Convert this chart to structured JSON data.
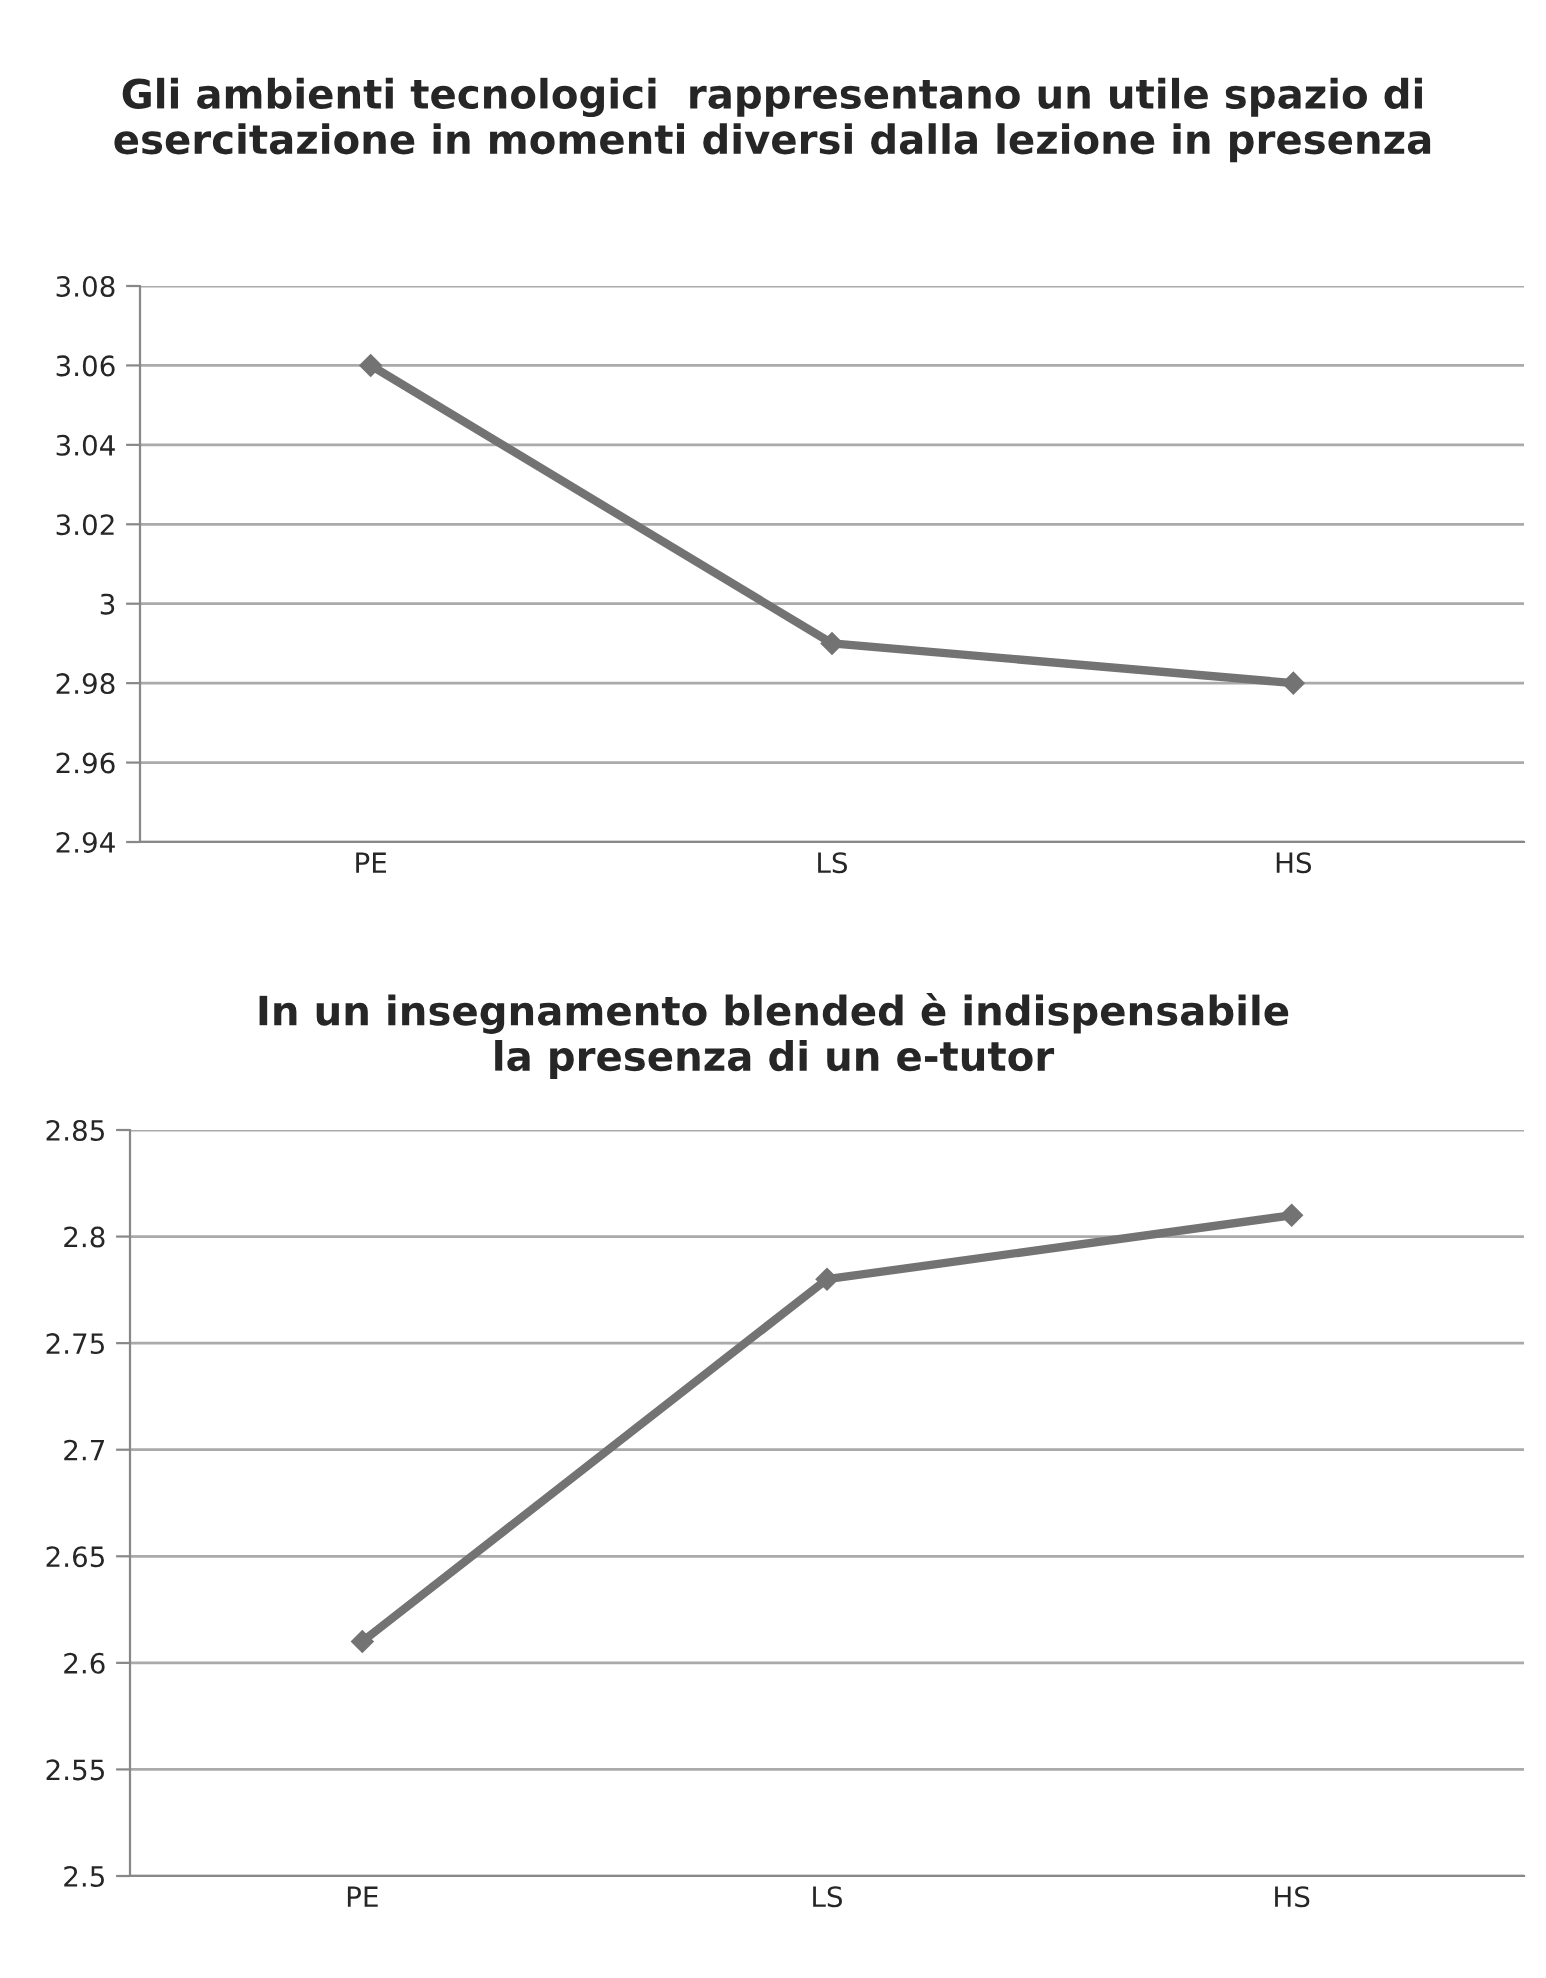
{
  "chart_data": [
    {
      "type": "line",
      "title": "Gli ambienti tecnologici  rappresentano un utile spazio di\nesercitazione in momenti diversi dalla lezione in presenza",
      "categories": [
        "PE",
        "LS",
        "HS"
      ],
      "series": [
        {
          "color": "#737373",
          "values": [
            3.06,
            2.99,
            2.98
          ]
        }
      ],
      "ylim": [
        2.94,
        3.08
      ],
      "yticks": [
        2.94,
        2.96,
        2.98,
        3,
        3.02,
        3.04,
        3.06,
        3.08
      ],
      "grid": "y",
      "marker": "diamond",
      "line_style": "solid"
    },
    {
      "type": "line",
      "title": "In un insegnamento blended è indispensabile\nla presenza di un e-tutor",
      "categories": [
        "PE",
        "LS",
        "HS"
      ],
      "series": [
        {
          "color": "#737373",
          "values": [
            2.61,
            2.78,
            2.81
          ]
        }
      ],
      "ylim": [
        2.5,
        2.85
      ],
      "yticks": [
        2.5,
        2.55,
        2.6,
        2.65,
        2.7,
        2.75,
        2.8,
        2.85
      ],
      "grid": "y",
      "marker": "diamond",
      "line_style": "solid"
    }
  ]
}
